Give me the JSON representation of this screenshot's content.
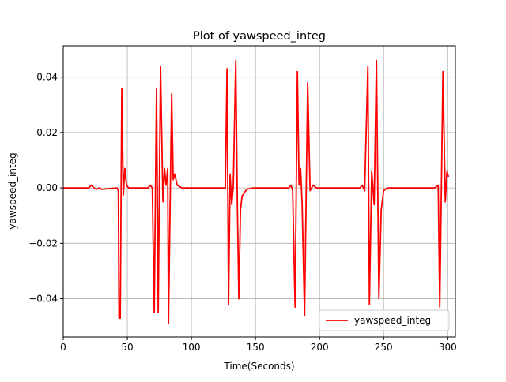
{
  "chart_data": {
    "type": "line",
    "title": "Plot of yawspeed_integ",
    "x_label": "Time(Seconds)",
    "y_label": "yawspeed_integ",
    "x": [
      0,
      20,
      22,
      24,
      26,
      28,
      30,
      42,
      43,
      43.5,
      44.5,
      45.7,
      46.9,
      48.1,
      49.4,
      51,
      66,
      67.9,
      69.5,
      71,
      72.8,
      74.1,
      75.9,
      77.8,
      79,
      80.2,
      81.5,
      82.1,
      84.6,
      85.8,
      87,
      88.9,
      92.6,
      125,
      126.5,
      127.8,
      129,
      130.2,
      131.5,
      132.7,
      134.6,
      135.8,
      137,
      138.3,
      139.5,
      143.2,
      148,
      176,
      177.8,
      179,
      180.9,
      182.7,
      184,
      185.2,
      186.4,
      188.3,
      190.7,
      192.6,
      195,
      197.5,
      231.5,
      233.3,
      235.2,
      237.7,
      238.9,
      240.7,
      242.6,
      244.4,
      246.3,
      248.1,
      250,
      253,
      290,
      292.6,
      293.8,
      296.3,
      298.1,
      299.4,
      300.6
    ],
    "series": [
      {
        "name": "yawspeed_integ",
        "color": "#ff0000",
        "values": [
          0,
          0,
          0.001,
          0,
          -0.0005,
          0,
          -0.0005,
          0,
          -0.001,
          -0.047,
          -0.047,
          0.036,
          -0.0025,
          0.007,
          0.001,
          0,
          0,
          0.001,
          0,
          -0.045,
          0.036,
          -0.045,
          0.044,
          -0.005,
          0.007,
          0.001,
          0.007,
          -0.049,
          0.034,
          0.003,
          0.005,
          0.001,
          0,
          0,
          0,
          0.043,
          -0.042,
          0.005,
          -0.006,
          0.001,
          0.046,
          -0.004,
          -0.04,
          -0.008,
          -0.003,
          -0.0005,
          0,
          0,
          0.001,
          -0.001,
          -0.043,
          0.042,
          0.001,
          0.007,
          -0.006,
          -0.046,
          0.038,
          -0.001,
          0.001,
          0,
          0,
          0.001,
          -0.001,
          0.044,
          -0.042,
          0.006,
          -0.006,
          0.046,
          -0.04,
          -0.008,
          -0.001,
          0,
          0,
          0.001,
          -0.043,
          0.042,
          -0.005,
          0.006,
          0.004
        ]
      }
    ],
    "xlim": [
      0,
      306
    ],
    "ylim": [
      -0.0538,
      0.0513
    ],
    "xticks": [
      0,
      50,
      100,
      150,
      200,
      250,
      300
    ],
    "yticks": [
      {
        "value": -0.04,
        "label": "−0.04"
      },
      {
        "value": -0.02,
        "label": "−0.02"
      },
      {
        "value": 0,
        "label": "0.00"
      },
      0.02,
      0.04
    ],
    "grid": true,
    "legend": "lower right"
  }
}
